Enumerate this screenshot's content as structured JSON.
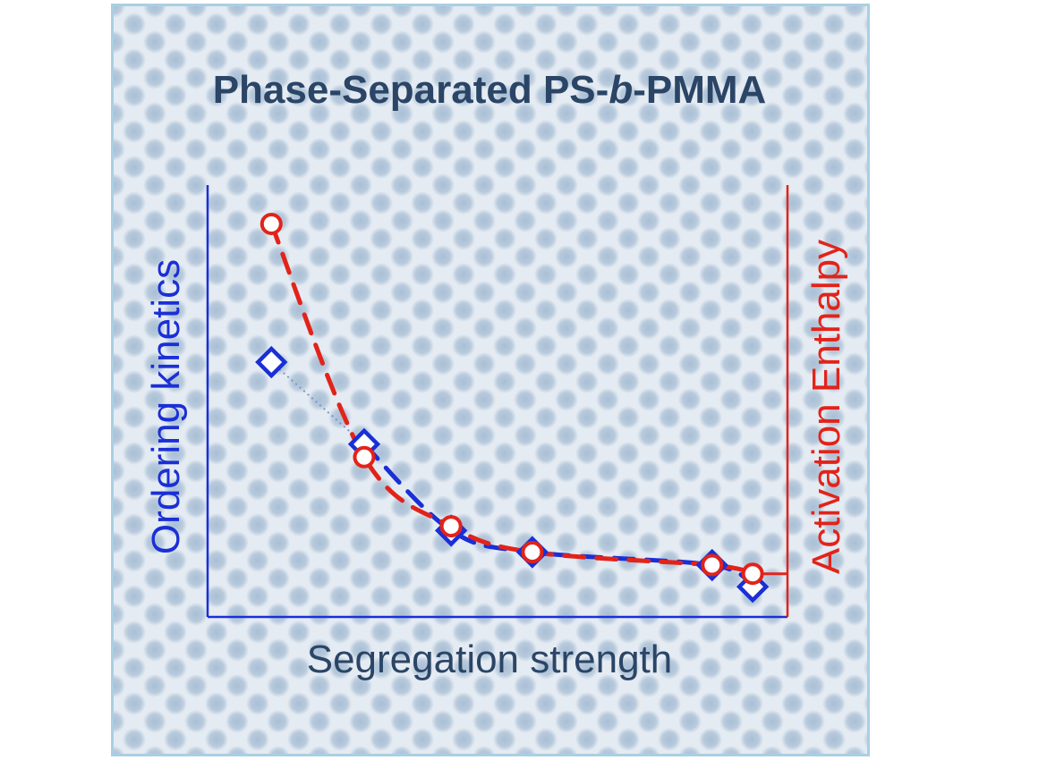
{
  "chart_data": {
    "type": "scatter",
    "title": {
      "part1": "Phase-Separated PS-",
      "italic": "b",
      "part2": "-PMMA"
    },
    "xlabel": "Segregation strength",
    "ylabel_left": "Ordering kinetics",
    "ylabel_right": "Activation Enthalpy",
    "xlim": [
      0,
      10
    ],
    "ylim": [
      0,
      10
    ],
    "grid": false,
    "series": [
      {
        "marker": "diamond",
        "color": "#1a2fd6",
        "axis": "left",
        "x": [
          1.1,
          2.7,
          4.2,
          5.6,
          8.7,
          9.4
        ],
        "y": [
          5.9,
          4.0,
          2.0,
          1.5,
          1.2,
          0.7
        ]
      },
      {
        "marker": "circle",
        "color": "#e2231a",
        "axis": "right",
        "x": [
          1.1,
          2.7,
          4.2,
          5.6,
          8.7,
          9.4
        ],
        "y": [
          9.1,
          3.7,
          2.1,
          1.5,
          1.2,
          1.0
        ]
      }
    ],
    "colors": {
      "title": "#2b4566",
      "left_axis": "#1a2fd6",
      "right_axis": "#e2231a"
    }
  }
}
